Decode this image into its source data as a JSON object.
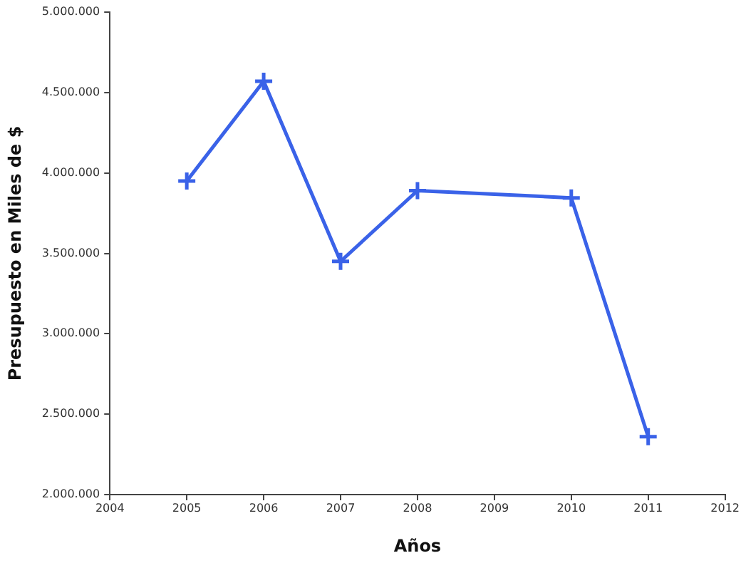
{
  "chart_data": {
    "type": "line",
    "xlabel": "Años",
    "ylabel": "Presupuesto en Miles de $",
    "x": [
      2005,
      2006,
      2007,
      2008,
      2010,
      2011
    ],
    "series": [
      {
        "color": "#3a62e8",
        "values": [
          3950000,
          4570000,
          3450000,
          3890000,
          3845000,
          2360000
        ]
      }
    ],
    "xlim": [
      2004,
      2012
    ],
    "xticks": [
      2004,
      2005,
      2006,
      2007,
      2008,
      2009,
      2010,
      2011,
      2012
    ],
    "ylim": [
      2000000,
      5000000
    ],
    "yticks": [
      {
        "value": 2000000,
        "label": "2.000.000"
      },
      {
        "value": 2500000,
        "label": "2.500.000"
      },
      {
        "value": 3000000,
        "label": "3.000.000"
      },
      {
        "value": 3500000,
        "label": "3.500.000"
      },
      {
        "value": 4000000,
        "label": "4.000.000"
      },
      {
        "value": 4500000,
        "label": "4.500.000"
      },
      {
        "value": 5000000,
        "label": "5.000.000"
      }
    ],
    "grid": false,
    "legend": false,
    "marker": "cross",
    "line_style": "solid"
  }
}
